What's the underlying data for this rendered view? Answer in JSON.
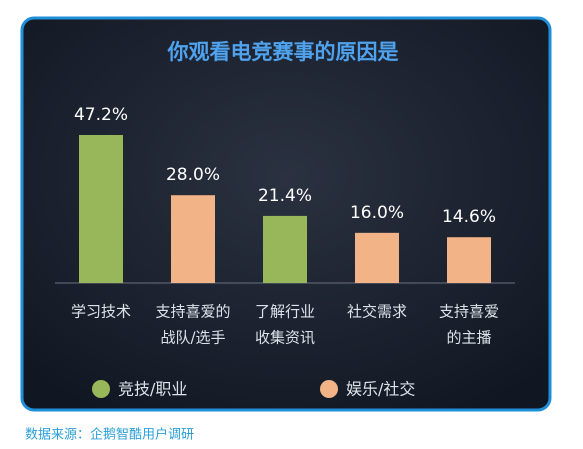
{
  "chart_data": {
    "type": "bar",
    "title": "你观看电竞赛事的原因是",
    "categories": [
      [
        "学习技术"
      ],
      [
        "支持喜爱的",
        "战队/选手"
      ],
      [
        "了解行业",
        "收集资讯"
      ],
      [
        "社交需求"
      ],
      [
        "支持喜爱",
        "的主播"
      ]
    ],
    "series": [
      {
        "name": "竞技/职业",
        "color": "#97b75a",
        "values": [
          47.2,
          null,
          21.4,
          null,
          null
        ],
        "value_labels": [
          "47.2%",
          null,
          "21.4%",
          null,
          null
        ]
      },
      {
        "name": "娱乐/社交",
        "color": "#f2b386",
        "values": [
          null,
          28.0,
          null,
          16.0,
          14.6
        ],
        "value_labels": [
          null,
          "28.0%",
          null,
          "16.0%",
          "14.6%"
        ]
      }
    ],
    "source": "数据来源：企鹅智酷用户调研"
  }
}
